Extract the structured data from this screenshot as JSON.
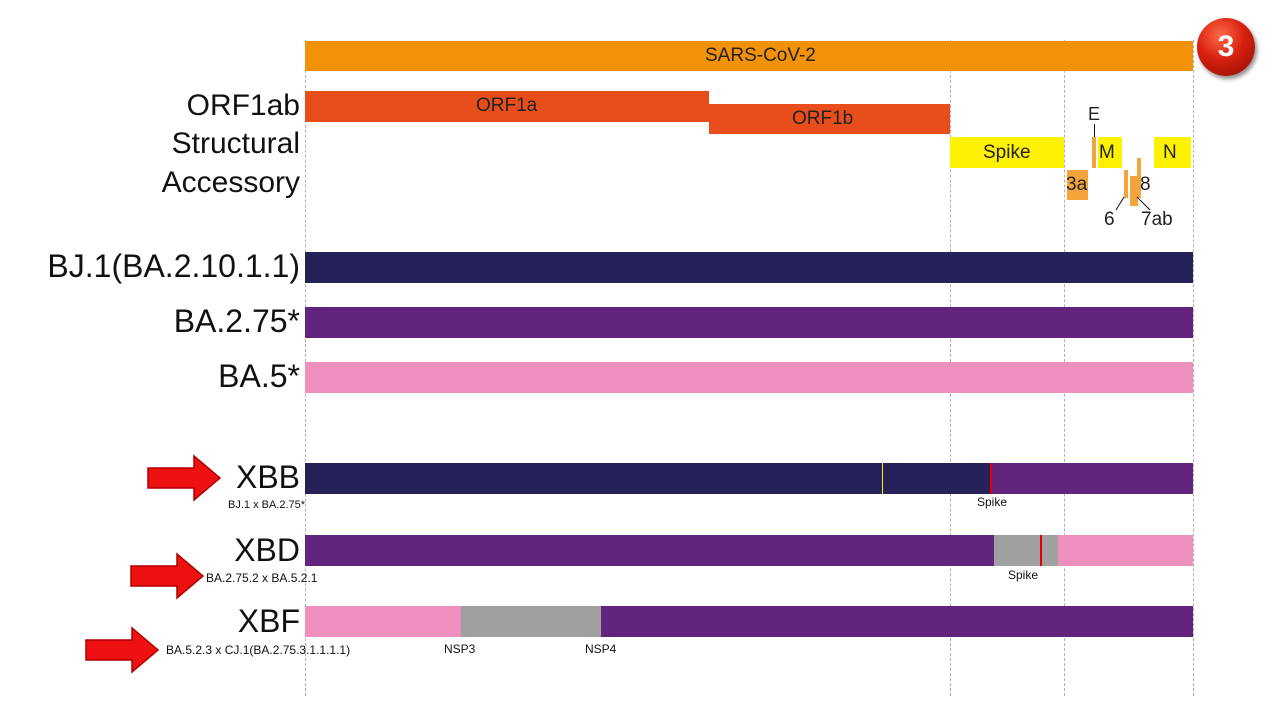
{
  "badge": "3",
  "genome": {
    "sars": "SARS-CoV-2",
    "orf1a": "ORF1a",
    "orf1b": "ORF1b",
    "spike": "Spike",
    "m": "M",
    "n": "N",
    "e": "E",
    "orf3a": "3a",
    "orf6": "6",
    "orf7ab": "7ab",
    "orf8": "8"
  },
  "row_labels": {
    "orf1ab": "ORF1ab",
    "structural": "Structural",
    "accessory": "Accessory"
  },
  "lineages": {
    "bj1": "BJ.1(BA.2.10.1.1)",
    "ba275": "BA.2.75*",
    "ba5": "BA.5*"
  },
  "recombinants": {
    "xbb": {
      "name": "XBB",
      "parents": "BJ.1 x BA.2.75*",
      "breakpoint": "Spike"
    },
    "xbd": {
      "name": "XBD",
      "parents": "BA.2.75.2 x BA.5.2.1",
      "breakpoint": "Spike"
    },
    "xbf": {
      "name": "XBF",
      "parents": "BA.5.2.3 x CJ.1(BA.2.75.3.1.1.1.1)",
      "nsp3": "NSP3",
      "nsp4": "NSP4"
    }
  },
  "colors": {
    "orange": "#f39208",
    "red_orange": "#e84e1b",
    "yellow": "#fff200",
    "light_orange": "#f4a43a",
    "navy": "#27215a",
    "purple": "#63247d",
    "pink": "#ef8fbd",
    "gray": "#a0a0a0",
    "arrow_red": "#ee1111"
  }
}
